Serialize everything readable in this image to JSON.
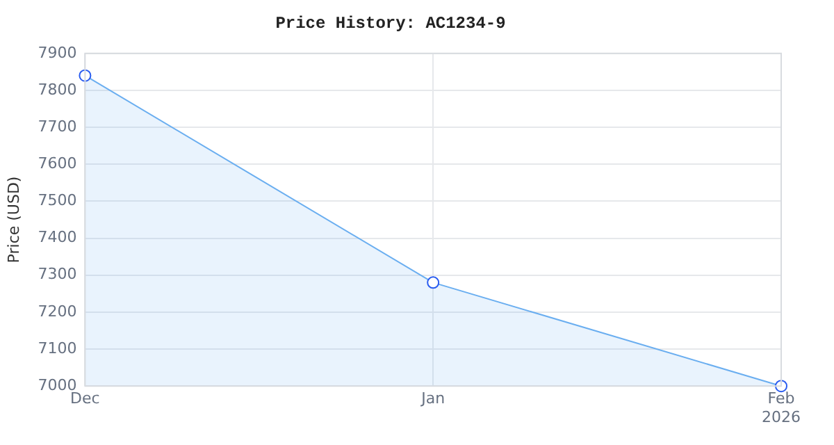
{
  "chart_data": {
    "type": "area",
    "title": "Price History: AC1234-9",
    "ylabel": "Price (USD)",
    "x": [
      "2025-12",
      "2026-01",
      "2026-02"
    ],
    "series": [
      {
        "color": "#6aaef0",
        "values": [
          7840,
          7280,
          7000
        ]
      }
    ],
    "xlim": [
      "2025-12",
      "2026-02"
    ],
    "xticks": [
      {
        "value": "2025-12",
        "label": "Dec"
      },
      {
        "value": "2026-01",
        "label": "Jan"
      },
      {
        "value": "2026-02",
        "label": "Feb\n2026"
      }
    ],
    "ylim": [
      7000,
      7900
    ],
    "yticks": [
      7000,
      7100,
      7200,
      7300,
      7400,
      7500,
      7600,
      7700,
      7800,
      7900
    ],
    "grid": true,
    "legend": false,
    "marker": "circle"
  }
}
